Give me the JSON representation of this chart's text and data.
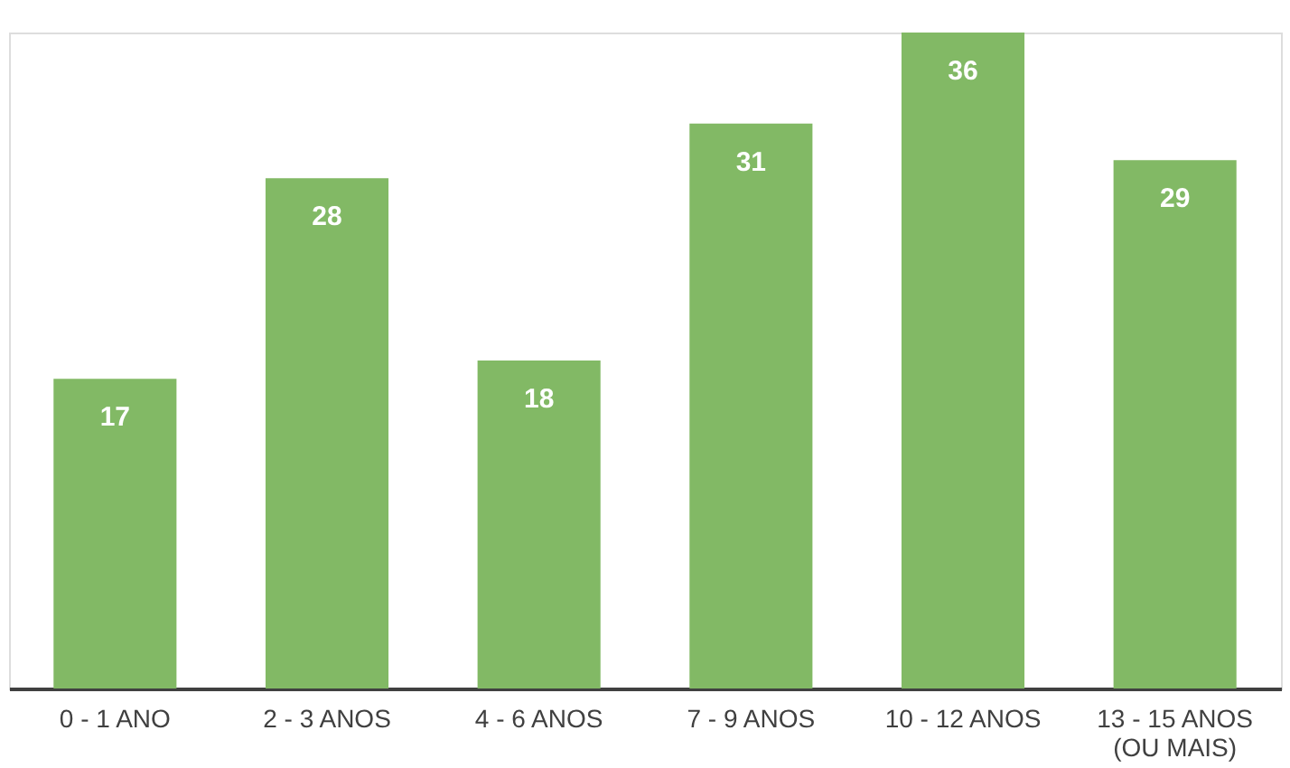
{
  "chart_data": {
    "type": "bar",
    "categories": [
      "0 - 1 ANO",
      "2 - 3 ANOS",
      "4 - 6 ANOS",
      "7 - 9 ANOS",
      "10 - 12 ANOS",
      "13 - 15 ANOS\n(OU MAIS)"
    ],
    "values": [
      17,
      28,
      18,
      31,
      36,
      29
    ],
    "color": "#82b965",
    "data_labels": true
  }
}
